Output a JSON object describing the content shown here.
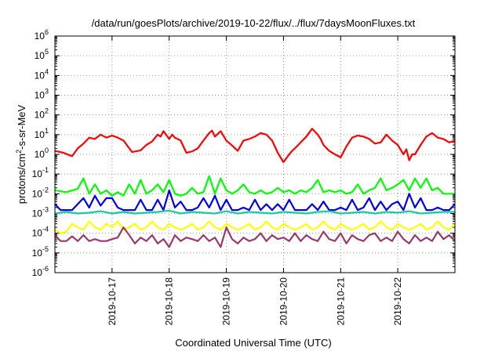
{
  "chart_data": {
    "type": "line",
    "title": "/data/run/goesPlots/archive/2019-10-22/flux/../flux/7daysMoonFluxes.txt",
    "xlabel": "Coordinated Universal Time (UTC)",
    "ylabel": {
      "base": "protons/cm",
      "sup": "2",
      "rest": "-s-sr-MeV"
    },
    "yscale": "log",
    "ylim_exp": [
      -6,
      6
    ],
    "y_ticks": [
      {
        "base": "10",
        "exp": "-6"
      },
      {
        "base": "10",
        "exp": "-5"
      },
      {
        "base": "10",
        "exp": "-4"
      },
      {
        "base": "10",
        "exp": "-3"
      },
      {
        "base": "10",
        "exp": "-2"
      },
      {
        "base": "10",
        "exp": "-1"
      },
      {
        "base": "10",
        "exp": "0"
      },
      {
        "base": "10",
        "exp": "1"
      },
      {
        "base": "10",
        "exp": "2"
      },
      {
        "base": "10",
        "exp": "3"
      },
      {
        "base": "10",
        "exp": "4"
      },
      {
        "base": "10",
        "exp": "5"
      },
      {
        "base": "10",
        "exp": "6"
      }
    ],
    "xlim_days": [
      16.0,
      23.0
    ],
    "x_ticks": [
      {
        "label": "2019-10-17",
        "day": 17
      },
      {
        "label": "2019-10-18",
        "day": 18
      },
      {
        "label": "2019-10-19",
        "day": 19
      },
      {
        "label": "2019-10-20",
        "day": 20
      },
      {
        "label": "2019-10-21",
        "day": 21
      },
      {
        "label": "2019-10-22",
        "day": 22
      }
    ],
    "grid": true,
    "series": [
      {
        "color": "#ff0000",
        "x": [
          16.0,
          16.15,
          16.3,
          16.4,
          16.5,
          16.6,
          16.7,
          16.8,
          16.9,
          17.0,
          17.1,
          17.2,
          17.35,
          17.5,
          17.6,
          17.7,
          17.8,
          17.85,
          17.9,
          18.0,
          18.05,
          18.1,
          18.2,
          18.3,
          18.4,
          18.5,
          18.6,
          18.7,
          18.75,
          18.8,
          18.9,
          19.0,
          19.1,
          19.2,
          19.3,
          19.4,
          19.5,
          19.6,
          19.7,
          19.8,
          19.85,
          19.9,
          20.0,
          20.1,
          20.15,
          20.2,
          20.3,
          20.4,
          20.5,
          20.6,
          20.65,
          20.7,
          20.8,
          20.9,
          21.0,
          21.1,
          21.2,
          21.3,
          21.4,
          21.5,
          21.6,
          21.7,
          21.8,
          21.9,
          22.0,
          22.1,
          22.15,
          22.2,
          22.25,
          22.3,
          22.4,
          22.5,
          22.6,
          22.7,
          22.8,
          22.9,
          23.0
        ],
        "y": [
          1.5,
          1.2,
          0.8,
          2,
          3.5,
          7,
          6,
          10,
          7,
          9,
          7,
          5,
          1.3,
          1.6,
          3,
          4.5,
          10,
          8,
          15,
          6,
          10,
          7,
          5,
          1.2,
          1.4,
          2,
          5,
          12,
          16,
          8,
          15,
          5,
          2.8,
          1.5,
          5,
          6,
          8,
          12,
          10,
          5,
          2.5,
          1.2,
          0.4,
          1,
          1.5,
          2,
          4,
          8,
          20,
          10,
          6,
          3,
          1.5,
          1,
          0.7,
          2.5,
          7,
          9,
          8,
          6,
          3.5,
          4,
          10,
          5,
          3,
          1,
          1.8,
          0.5,
          1,
          1,
          3,
          8,
          12,
          7,
          6,
          4,
          5
        ]
      },
      {
        "color": "#00ff00",
        "x": [
          16.0,
          16.2,
          16.4,
          16.5,
          16.6,
          16.7,
          16.8,
          16.9,
          17.0,
          17.1,
          17.2,
          17.3,
          17.4,
          17.5,
          17.6,
          17.7,
          17.8,
          17.9,
          18.0,
          18.1,
          18.2,
          18.3,
          18.4,
          18.5,
          18.6,
          18.7,
          18.8,
          18.9,
          19.0,
          19.1,
          19.2,
          19.3,
          19.4,
          19.5,
          19.6,
          19.7,
          19.8,
          19.9,
          20.0,
          20.1,
          20.2,
          20.3,
          20.4,
          20.5,
          20.6,
          20.7,
          20.8,
          20.9,
          21.0,
          21.1,
          21.2,
          21.3,
          21.4,
          21.5,
          21.6,
          21.7,
          21.8,
          21.9,
          22.0,
          22.1,
          22.2,
          22.3,
          22.4,
          22.5,
          22.6,
          22.7,
          22.8,
          22.9,
          23.0
        ],
        "y": [
          0.015,
          0.012,
          0.018,
          0.06,
          0.01,
          0.03,
          0.01,
          0.015,
          0.008,
          0.012,
          0.008,
          0.03,
          0.01,
          0.05,
          0.01,
          0.015,
          0.03,
          0.012,
          0.05,
          0.01,
          0.008,
          0.01,
          0.02,
          0.01,
          0.012,
          0.08,
          0.01,
          0.06,
          0.015,
          0.01,
          0.015,
          0.03,
          0.012,
          0.01,
          0.015,
          0.01,
          0.012,
          0.02,
          0.012,
          0.015,
          0.01,
          0.015,
          0.012,
          0.02,
          0.05,
          0.012,
          0.015,
          0.012,
          0.015,
          0.01,
          0.012,
          0.03,
          0.01,
          0.015,
          0.02,
          0.06,
          0.015,
          0.02,
          0.03,
          0.05,
          0.015,
          0.06,
          0.02,
          0.06,
          0.015,
          0.02,
          0.01,
          0.01,
          0.01
        ]
      },
      {
        "color": "#0000ee",
        "x": [
          16.0,
          16.1,
          16.2,
          16.3,
          16.4,
          16.5,
          16.6,
          16.7,
          16.8,
          16.9,
          17.0,
          17.1,
          17.2,
          17.3,
          17.4,
          17.5,
          17.6,
          17.7,
          17.8,
          17.9,
          18.0,
          18.1,
          18.2,
          18.3,
          18.4,
          18.5,
          18.6,
          18.7,
          18.8,
          18.9,
          19.0,
          19.1,
          19.2,
          19.3,
          19.4,
          19.5,
          19.6,
          19.7,
          19.8,
          19.9,
          20.0,
          20.1,
          20.2,
          20.3,
          20.4,
          20.5,
          20.6,
          20.7,
          20.8,
          20.9,
          21.0,
          21.1,
          21.2,
          21.3,
          21.4,
          21.5,
          21.6,
          21.7,
          21.8,
          21.9,
          22.0,
          22.1,
          22.2,
          22.3,
          22.4,
          22.5,
          22.6,
          22.7,
          22.8,
          22.9,
          23.0
        ],
        "y": [
          0.003,
          0.0015,
          0.0015,
          0.0015,
          0.003,
          0.006,
          0.002,
          0.008,
          0.0025,
          0.006,
          0.006,
          0.002,
          0.0015,
          0.0015,
          0.0015,
          0.005,
          0.0015,
          0.0015,
          0.005,
          0.0015,
          0.015,
          0.002,
          0.004,
          0.0015,
          0.0015,
          0.002,
          0.006,
          0.002,
          0.008,
          0.0015,
          0.005,
          0.0015,
          0.0015,
          0.002,
          0.0015,
          0.005,
          0.0015,
          0.003,
          0.0015,
          0.003,
          0.0015,
          0.005,
          0.0015,
          0.0015,
          0.0015,
          0.003,
          0.0015,
          0.004,
          0.0015,
          0.0015,
          0.002,
          0.0015,
          0.005,
          0.0015,
          0.002,
          0.006,
          0.0015,
          0.004,
          0.0015,
          0.003,
          0.004,
          0.0015,
          0.01,
          0.002,
          0.006,
          0.0015,
          0.0015,
          0.002,
          0.0015,
          0.0015,
          0.003
        ]
      },
      {
        "color": "#20c8a0",
        "x": [
          16.0,
          16.2,
          16.4,
          16.6,
          16.8,
          17.0,
          17.2,
          17.4,
          17.6,
          17.8,
          18.0,
          18.2,
          18.4,
          18.6,
          18.8,
          19.0,
          19.2,
          19.4,
          19.6,
          19.8,
          20.0,
          20.2,
          20.4,
          20.6,
          20.8,
          21.0,
          21.2,
          21.4,
          21.6,
          21.8,
          22.0,
          22.2,
          22.4,
          22.6,
          22.8,
          23.0
        ],
        "y": [
          0.001,
          0.0012,
          0.001,
          0.0011,
          0.0013,
          0.001,
          0.0012,
          0.001,
          0.0011,
          0.0012,
          0.0014,
          0.001,
          0.0012,
          0.0011,
          0.001,
          0.0013,
          0.001,
          0.0012,
          0.0011,
          0.001,
          0.0012,
          0.0011,
          0.001,
          0.0012,
          0.0013,
          0.001,
          0.0011,
          0.0012,
          0.001,
          0.0012,
          0.0011,
          0.0013,
          0.001,
          0.0011,
          0.0012,
          0.0012
        ]
      },
      {
        "color": "#ffff00",
        "x": [
          16.0,
          16.1,
          16.2,
          16.3,
          16.4,
          16.5,
          16.6,
          16.7,
          16.8,
          16.9,
          17.0,
          17.1,
          17.2,
          17.3,
          17.4,
          17.5,
          17.6,
          17.7,
          17.8,
          17.9,
          18.0,
          18.1,
          18.2,
          18.3,
          18.4,
          18.5,
          18.6,
          18.7,
          18.8,
          18.9,
          19.0,
          19.1,
          19.2,
          19.3,
          19.4,
          19.5,
          19.6,
          19.7,
          19.8,
          19.9,
          20.0,
          20.1,
          20.2,
          20.3,
          20.4,
          20.5,
          20.6,
          20.7,
          20.8,
          20.9,
          21.0,
          21.1,
          21.2,
          21.3,
          21.4,
          21.5,
          21.6,
          21.7,
          21.8,
          21.9,
          22.0,
          22.1,
          22.2,
          22.3,
          22.4,
          22.5,
          22.6,
          22.7,
          22.8,
          22.9,
          23.0
        ],
        "y": [
          0.00015,
          0.0001,
          0.00012,
          0.0003,
          0.0002,
          0.00015,
          0.0004,
          0.0002,
          0.00015,
          0.0003,
          0.0002,
          0.0004,
          0.00015,
          0.0002,
          0.0003,
          0.00015,
          0.0002,
          0.0004,
          0.0002,
          0.00015,
          0.0003,
          0.0002,
          0.00015,
          0.0002,
          0.0003,
          0.00015,
          0.0002,
          0.0004,
          0.0002,
          0.00015,
          0.0003,
          0.0002,
          0.00015,
          0.0002,
          0.0003,
          0.00015,
          0.0002,
          0.0004,
          0.0002,
          0.00015,
          0.0003,
          0.0002,
          0.00015,
          0.0002,
          0.0003,
          0.00015,
          0.0002,
          0.0004,
          0.0002,
          0.00015,
          0.0003,
          0.0002,
          0.00015,
          0.0002,
          0.0003,
          0.00015,
          0.0002,
          0.0004,
          0.0002,
          0.00015,
          0.0003,
          0.0002,
          0.00015,
          0.0002,
          0.0003,
          0.00015,
          0.0002,
          0.0004,
          0.0002,
          0.00015,
          0.0003
        ]
      },
      {
        "color": "#9a3a6a",
        "x": [
          16.0,
          16.1,
          16.2,
          16.3,
          16.4,
          16.5,
          16.6,
          16.7,
          16.8,
          16.9,
          17.0,
          17.1,
          17.2,
          17.3,
          17.4,
          17.5,
          17.6,
          17.7,
          17.8,
          17.9,
          18.0,
          18.1,
          18.2,
          18.3,
          18.4,
          18.5,
          18.6,
          18.7,
          18.8,
          18.9,
          19.0,
          19.1,
          19.2,
          19.3,
          19.4,
          19.5,
          19.6,
          19.7,
          19.8,
          19.9,
          20.0,
          20.1,
          20.2,
          20.3,
          20.4,
          20.5,
          20.6,
          20.7,
          20.8,
          20.9,
          21.0,
          21.1,
          21.2,
          21.3,
          21.4,
          21.5,
          21.6,
          21.7,
          21.8,
          21.9,
          22.0,
          22.1,
          22.2,
          22.3,
          22.4,
          22.5,
          22.6,
          22.7,
          22.8,
          22.9,
          23.0
        ],
        "y": [
          8e-05,
          4e-05,
          4e-05,
          7e-05,
          4e-05,
          8e-05,
          4e-05,
          5e-05,
          4e-05,
          4e-05,
          5e-05,
          6e-05,
          0.0002,
          8e-05,
          3e-05,
          6e-05,
          4e-05,
          8e-05,
          3e-05,
          5e-05,
          2e-05,
          8e-05,
          4e-05,
          6e-05,
          5e-05,
          4e-05,
          8e-05,
          4e-05,
          6e-05,
          2e-05,
          0.0002,
          5e-05,
          3e-05,
          6e-05,
          4e-05,
          5e-05,
          0.0001,
          4e-05,
          8e-05,
          5e-05,
          6e-05,
          4e-05,
          0.0001,
          4e-05,
          8e-05,
          5e-05,
          4e-05,
          0.00012,
          5e-05,
          4e-05,
          0.0001,
          3e-05,
          8e-05,
          5e-05,
          4e-05,
          8e-05,
          0.0001,
          4e-05,
          6e-05,
          4e-05,
          0.00012,
          5e-05,
          3e-05,
          8e-05,
          4e-05,
          6e-05,
          4e-05,
          0.00012,
          5e-05,
          8e-05,
          4e-05
        ]
      }
    ]
  }
}
